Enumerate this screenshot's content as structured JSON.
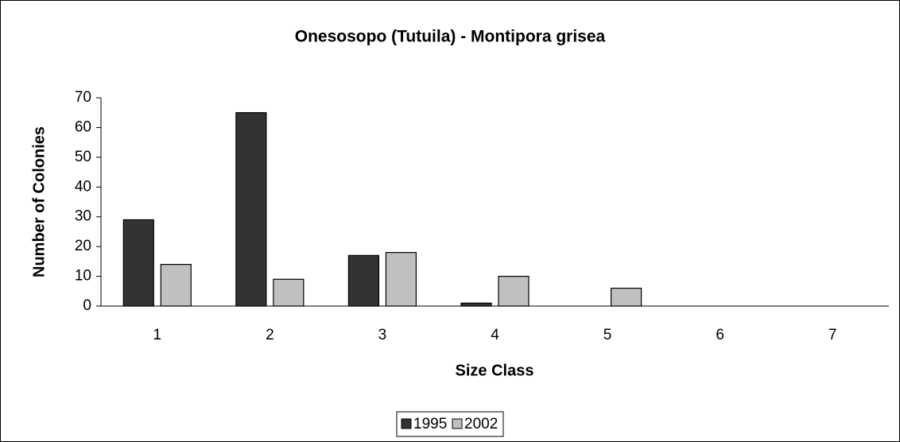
{
  "chart_data": {
    "type": "bar",
    "title": "Onesosopo (Tutuila) - Montipora grisea",
    "x_label": "Size Class",
    "y_label": "Number of Colonies",
    "categories": [
      "1",
      "2",
      "3",
      "4",
      "5",
      "6",
      "7"
    ],
    "series": [
      {
        "name": "1995",
        "color": "#333333",
        "values": [
          29,
          65,
          17,
          1,
          0,
          0,
          0
        ]
      },
      {
        "name": "2002",
        "color": "#c0c0c0",
        "values": [
          14,
          9,
          18,
          10,
          6,
          0,
          0
        ]
      }
    ],
    "ylim": [
      0,
      70
    ],
    "yticks": [
      0,
      10,
      20,
      30,
      40,
      50,
      60,
      70
    ],
    "legend": "bottom"
  }
}
